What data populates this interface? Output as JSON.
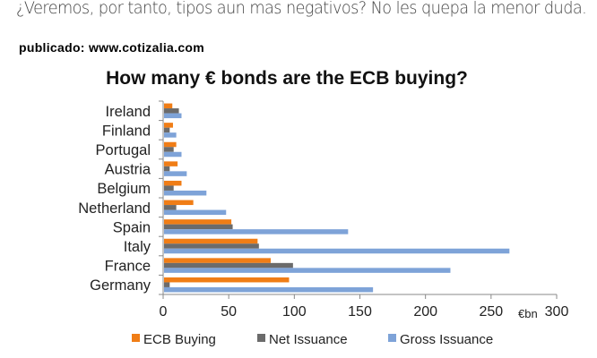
{
  "article": {
    "intro_text": "¿Veremos, por tanto, tipos aun mas negativos? No les quepa la menor duda.",
    "published_label": "publicado: www.cotizalia.com"
  },
  "chart_data": {
    "type": "bar",
    "orientation": "horizontal",
    "title": "How many € bonds are the ECB buying?",
    "xlabel": "€bn",
    "ylabel": "",
    "xlim": [
      0,
      300
    ],
    "xticks": [
      0,
      50,
      100,
      150,
      200,
      250,
      300
    ],
    "grid": false,
    "legend_position": "bottom",
    "categories": [
      "Ireland",
      "Finland",
      "Portugal",
      "Austria",
      "Belgium",
      "Netherland",
      "Spain",
      "Italy",
      "France",
      "Germany"
    ],
    "series": [
      {
        "name": "ECB Buying",
        "color": "#f07d16",
        "values": [
          7,
          7.5,
          10,
          11,
          14,
          23,
          52,
          72,
          82,
          96
        ]
      },
      {
        "name": "Net Issuance",
        "color": "#6b6b6b",
        "values": [
          12,
          5,
          8,
          5,
          8,
          10,
          53,
          73,
          99,
          5
        ]
      },
      {
        "name": "Gross Issuance",
        "color": "#7ea3d8",
        "values": [
          14,
          10,
          14,
          18,
          33,
          48,
          141,
          264,
          219,
          160
        ]
      }
    ]
  }
}
